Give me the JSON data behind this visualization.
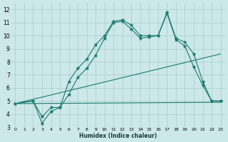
{
  "xlabel": "Humidex (Indice chaleur)",
  "xlim": [
    -0.5,
    23.5
  ],
  "ylim": [
    3,
    12.5
  ],
  "yticks": [
    3,
    4,
    5,
    6,
    7,
    8,
    9,
    10,
    11,
    12
  ],
  "xticks": [
    0,
    1,
    2,
    3,
    4,
    5,
    6,
    7,
    8,
    9,
    10,
    11,
    12,
    13,
    14,
    15,
    16,
    17,
    18,
    19,
    20,
    21,
    22,
    23
  ],
  "line_color": "#1a7a6e",
  "bg_color": "#cce8e8",
  "grid_color": "#aacccc",
  "lines": [
    {
      "x": [
        0,
        2,
        3,
        4,
        5,
        6,
        7,
        8,
        9,
        10,
        11,
        12,
        13,
        14,
        15,
        16,
        17,
        18,
        19,
        20,
        21,
        22,
        23
      ],
      "y": [
        4.8,
        5.0,
        3.8,
        4.5,
        4.5,
        6.5,
        7.5,
        8.2,
        9.3,
        10.0,
        11.1,
        11.2,
        10.8,
        10.0,
        10.0,
        10.0,
        11.8,
        9.8,
        9.5,
        8.6,
        6.5,
        5.0,
        5.0
      ]
    },
    {
      "x": [
        0,
        2,
        3,
        4,
        5,
        6,
        7,
        8,
        9,
        10,
        11,
        12,
        13,
        14,
        15,
        16,
        17,
        18,
        19,
        20,
        21,
        22,
        23
      ],
      "y": [
        4.8,
        5.0,
        3.3,
        4.2,
        4.5,
        5.5,
        6.8,
        7.5,
        8.5,
        9.8,
        11.0,
        11.1,
        10.5,
        9.8,
        9.9,
        10.0,
        11.7,
        9.7,
        9.2,
        7.6,
        6.2,
        5.0,
        5.0
      ]
    },
    {
      "x": [
        0,
        23
      ],
      "y": [
        4.8,
        4.9
      ]
    },
    {
      "x": [
        0,
        23
      ],
      "y": [
        4.8,
        8.6
      ]
    }
  ]
}
